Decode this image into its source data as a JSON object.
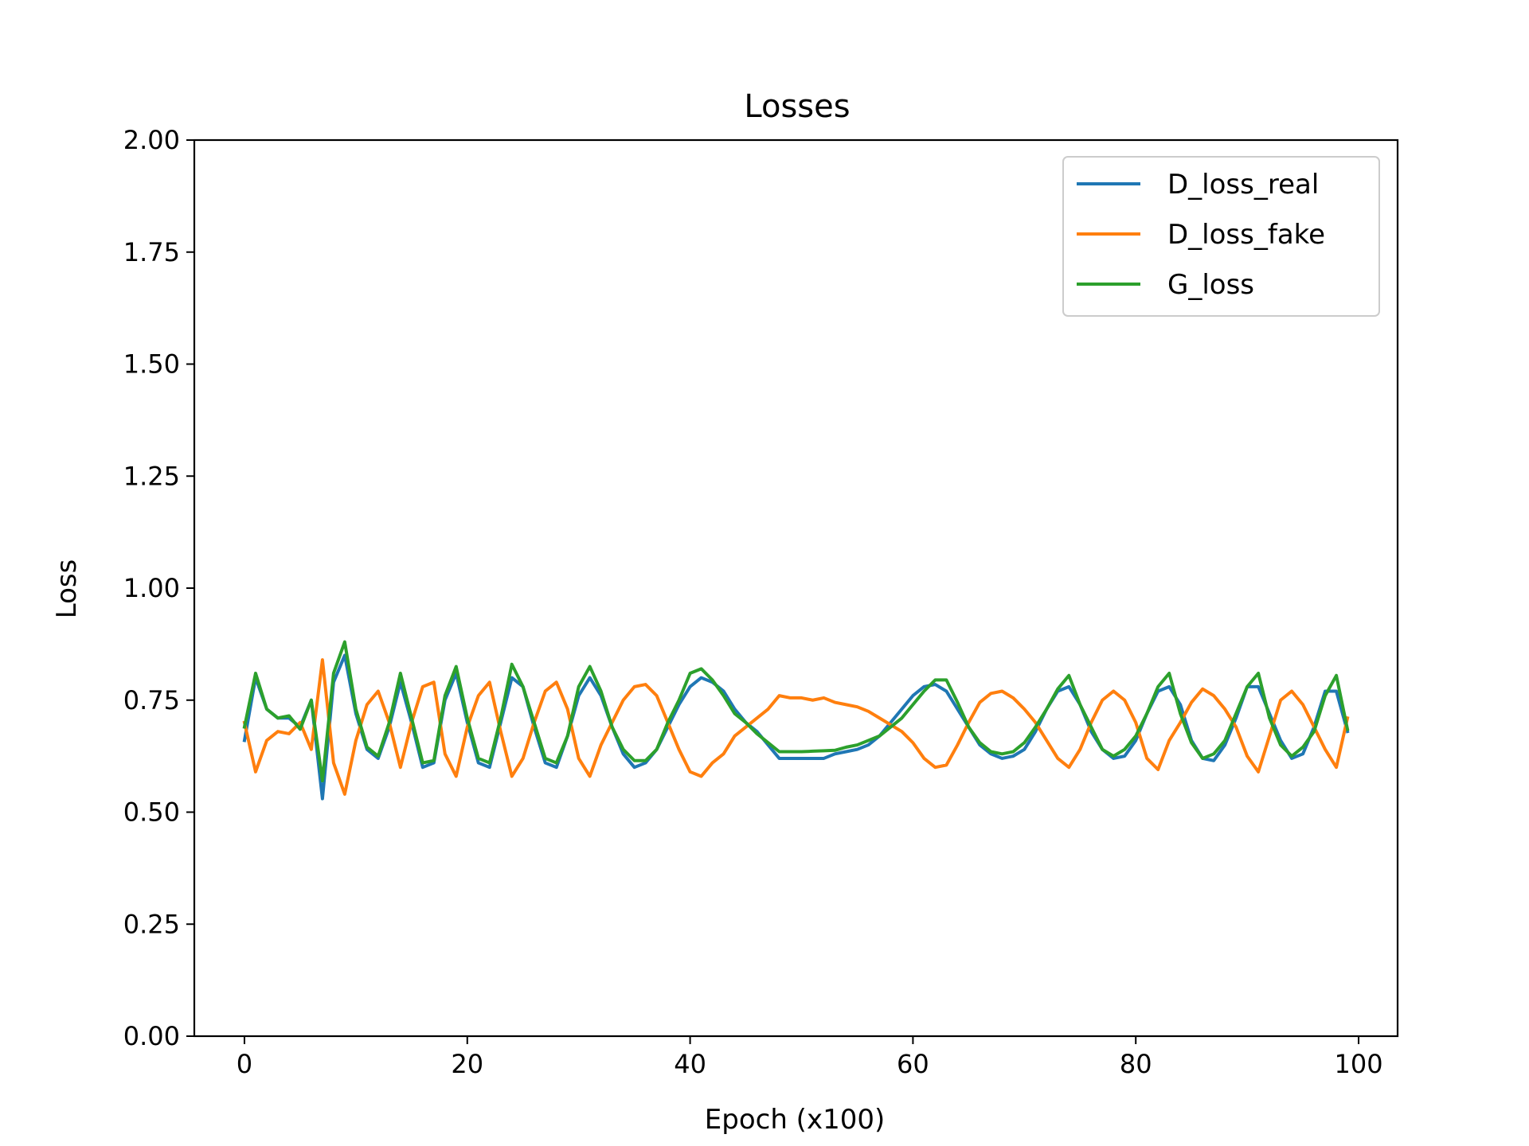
{
  "chart_data": {
    "type": "line",
    "title": "Losses",
    "xlabel": "Epoch (x100)",
    "ylabel": "Loss",
    "xlim": [
      -4.5,
      103.5
    ],
    "ylim": [
      0,
      2
    ],
    "xticks": [
      0,
      20,
      40,
      60,
      80,
      100
    ],
    "xtick_labels": [
      "0",
      "20",
      "40",
      "60",
      "80",
      "100"
    ],
    "yticks": [
      0,
      0.25,
      0.5,
      0.75,
      1.0,
      1.25,
      1.5,
      1.75,
      2.0
    ],
    "ytick_labels": [
      "0.00",
      "0.25",
      "0.50",
      "0.75",
      "1.00",
      "1.25",
      "1.50",
      "1.75",
      "2.00"
    ],
    "grid": false,
    "legend_position": "top-right",
    "x": [
      0,
      1,
      2,
      3,
      4,
      5,
      6,
      7,
      8,
      9,
      10,
      11,
      12,
      13,
      14,
      15,
      16,
      17,
      18,
      19,
      20,
      21,
      22,
      23,
      24,
      25,
      26,
      27,
      28,
      29,
      30,
      31,
      32,
      33,
      34,
      35,
      36,
      37,
      38,
      39,
      40,
      41,
      42,
      43,
      44,
      45,
      46,
      47,
      48,
      49,
      50,
      51,
      52,
      53,
      54,
      55,
      56,
      57,
      58,
      59,
      60,
      61,
      62,
      63,
      64,
      65,
      66,
      67,
      68,
      69,
      70,
      71,
      72,
      73,
      74,
      75,
      76,
      77,
      78,
      79,
      80,
      81,
      82,
      83,
      84,
      85,
      86,
      87,
      88,
      89,
      90,
      91,
      92,
      93,
      94,
      95,
      96,
      97,
      98,
      99
    ],
    "series": [
      {
        "name": "D_loss_real",
        "color": "#1f77b4",
        "values": [
          0.66,
          0.8,
          0.73,
          0.71,
          0.71,
          0.69,
          0.75,
          0.53,
          0.79,
          0.85,
          0.72,
          0.64,
          0.62,
          0.69,
          0.79,
          0.7,
          0.6,
          0.61,
          0.75,
          0.81,
          0.7,
          0.61,
          0.6,
          0.7,
          0.8,
          0.78,
          0.69,
          0.61,
          0.6,
          0.67,
          0.76,
          0.8,
          0.76,
          0.69,
          0.63,
          0.6,
          0.61,
          0.64,
          0.69,
          0.74,
          0.78,
          0.8,
          0.79,
          0.77,
          0.73,
          0.7,
          0.68,
          0.65,
          0.62,
          0.62,
          0.62,
          0.62,
          0.62,
          0.63,
          0.635,
          0.64,
          0.65,
          0.67,
          0.7,
          0.73,
          0.76,
          0.78,
          0.785,
          0.77,
          0.73,
          0.69,
          0.65,
          0.63,
          0.62,
          0.625,
          0.64,
          0.68,
          0.73,
          0.77,
          0.78,
          0.74,
          0.68,
          0.64,
          0.62,
          0.625,
          0.66,
          0.72,
          0.77,
          0.78,
          0.74,
          0.66,
          0.62,
          0.615,
          0.65,
          0.71,
          0.78,
          0.78,
          0.72,
          0.66,
          0.62,
          0.63,
          0.69,
          0.77,
          0.77,
          0.68
        ]
      },
      {
        "name": "D_loss_fake",
        "color": "#ff7f0e",
        "values": [
          0.7,
          0.59,
          0.66,
          0.68,
          0.675,
          0.7,
          0.64,
          0.84,
          0.61,
          0.54,
          0.66,
          0.74,
          0.77,
          0.7,
          0.6,
          0.7,
          0.78,
          0.79,
          0.63,
          0.58,
          0.69,
          0.76,
          0.79,
          0.68,
          0.58,
          0.62,
          0.7,
          0.77,
          0.79,
          0.73,
          0.62,
          0.58,
          0.65,
          0.7,
          0.75,
          0.78,
          0.785,
          0.76,
          0.7,
          0.64,
          0.59,
          0.58,
          0.61,
          0.63,
          0.67,
          0.69,
          0.71,
          0.73,
          0.76,
          0.755,
          0.755,
          0.75,
          0.755,
          0.745,
          0.74,
          0.735,
          0.725,
          0.71,
          0.695,
          0.68,
          0.655,
          0.62,
          0.6,
          0.605,
          0.65,
          0.7,
          0.745,
          0.765,
          0.77,
          0.755,
          0.73,
          0.7,
          0.66,
          0.62,
          0.6,
          0.64,
          0.7,
          0.75,
          0.77,
          0.75,
          0.7,
          0.62,
          0.595,
          0.66,
          0.7,
          0.745,
          0.775,
          0.76,
          0.73,
          0.69,
          0.625,
          0.59,
          0.67,
          0.75,
          0.77,
          0.74,
          0.69,
          0.64,
          0.6,
          0.71
        ]
      },
      {
        "name": "G_loss",
        "color": "#2ca02c",
        "values": [
          0.69,
          0.81,
          0.73,
          0.71,
          0.715,
          0.685,
          0.75,
          0.57,
          0.81,
          0.88,
          0.73,
          0.645,
          0.625,
          0.7,
          0.81,
          0.71,
          0.61,
          0.615,
          0.76,
          0.825,
          0.71,
          0.62,
          0.61,
          0.71,
          0.83,
          0.78,
          0.7,
          0.62,
          0.61,
          0.67,
          0.78,
          0.825,
          0.77,
          0.69,
          0.64,
          0.615,
          0.615,
          0.64,
          0.7,
          0.75,
          0.81,
          0.82,
          0.795,
          0.76,
          0.72,
          0.7,
          0.675,
          0.655,
          0.635,
          0.635,
          0.635,
          0.636,
          0.637,
          0.638,
          0.645,
          0.65,
          0.66,
          0.67,
          0.69,
          0.71,
          0.74,
          0.77,
          0.795,
          0.795,
          0.745,
          0.69,
          0.655,
          0.635,
          0.63,
          0.635,
          0.655,
          0.69,
          0.73,
          0.775,
          0.805,
          0.74,
          0.69,
          0.64,
          0.625,
          0.64,
          0.67,
          0.72,
          0.78,
          0.81,
          0.72,
          0.655,
          0.62,
          0.63,
          0.66,
          0.72,
          0.78,
          0.81,
          0.71,
          0.65,
          0.625,
          0.645,
          0.68,
          0.76,
          0.805,
          0.685
        ]
      }
    ]
  }
}
